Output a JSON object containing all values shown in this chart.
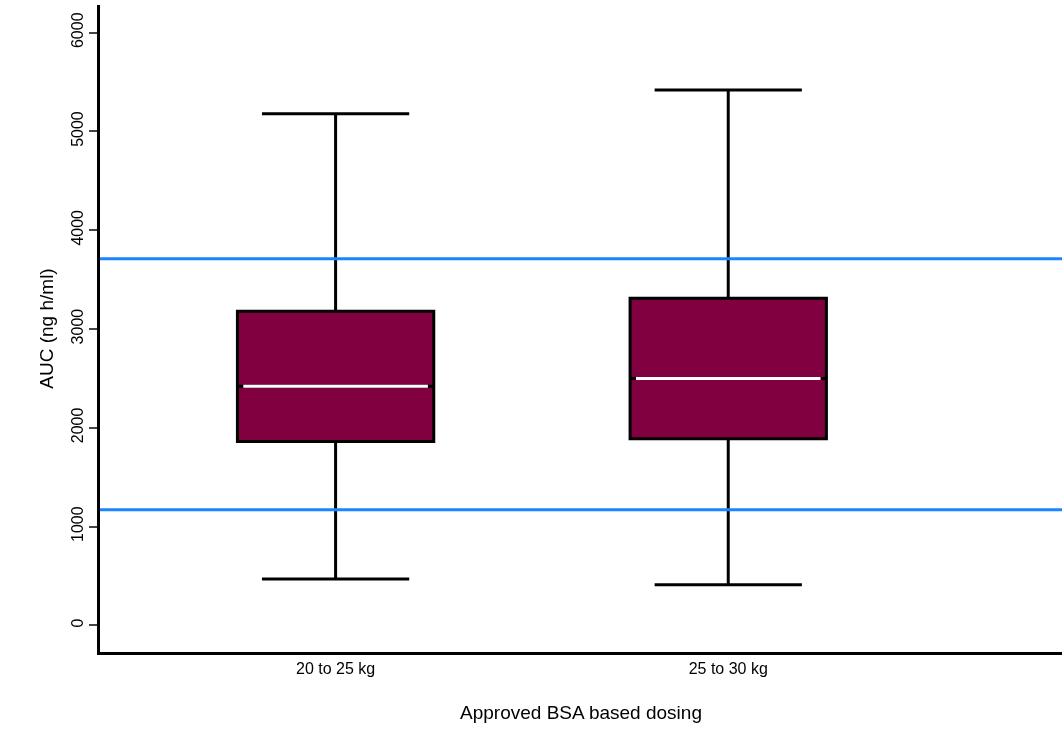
{
  "chart_data": {
    "type": "box",
    "xlabel": "Approved BSA based dosing",
    "ylabel": "AUC (ng h/ml)",
    "categories": [
      "20 to 25 kg",
      "25 to 30 kg"
    ],
    "boxes": [
      {
        "low": 470,
        "q1": 1860,
        "median": 2420,
        "q3": 3180,
        "high": 5180
      },
      {
        "low": 410,
        "q1": 1890,
        "median": 2500,
        "q3": 3310,
        "high": 5420
      }
    ],
    "color": "#800040",
    "ylim": [
      -270,
      6280
    ],
    "yticks": [
      0,
      1000,
      2000,
      3000,
      4000,
      5000,
      6000
    ],
    "ref_lines": [
      {
        "axis": "y",
        "value": 3710,
        "color": "#1a85ff"
      },
      {
        "axis": "y",
        "value": 1170,
        "color": "#1a85ff"
      }
    ],
    "grid": false
  }
}
